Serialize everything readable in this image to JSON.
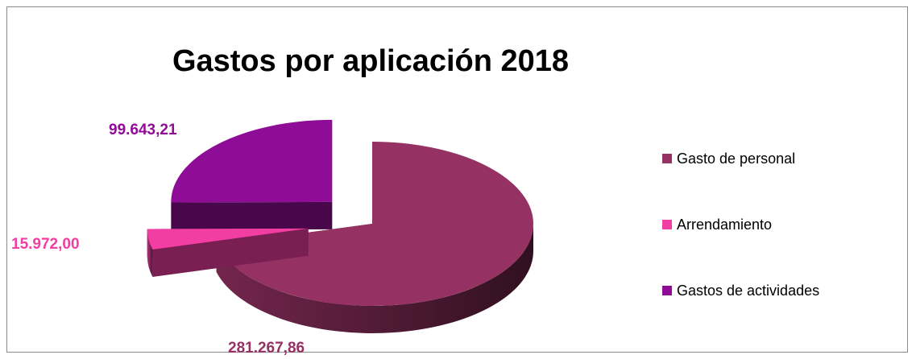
{
  "chart_data": {
    "type": "pie",
    "title": "Gastos por aplicación 2018",
    "categories": [
      "Gasto de personal",
      "Arrendamiento",
      "Gastos de actividades"
    ],
    "values": [
      281267.86,
      15972.0,
      99643.21
    ],
    "value_labels": [
      "281.267,86",
      "15.972,00",
      "99.643,21"
    ],
    "colors": [
      "#953163",
      "#f23ea3",
      "#8f0c96"
    ],
    "label_colors": [
      "#953163",
      "#f23ea3",
      "#8f0c96"
    ],
    "style": "3d-exploded",
    "legend_position": "right"
  }
}
